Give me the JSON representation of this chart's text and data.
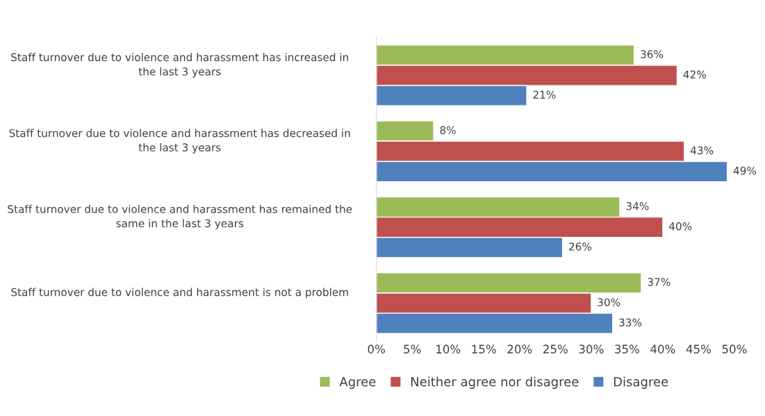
{
  "chart_data": {
    "type": "bar",
    "orientation": "horizontal",
    "categories": [
      "Staff turnover due to violence and harassment has increased in the last 3 years",
      "Staff turnover due to violence and harassment has decreased in the last 3 years",
      "Staff turnover due to violence and harassment has remained the same in the last 3 years",
      "Staff turnover due to violence and harassment is not a problem"
    ],
    "series": [
      {
        "name": "Agree",
        "color": "#9bbb59",
        "values": [
          36,
          8,
          34,
          37
        ],
        "value_labels": [
          "36%",
          "8%",
          "34%",
          "37%"
        ]
      },
      {
        "name": "Neither agree nor disagree",
        "color": "#c0504d",
        "values": [
          42,
          43,
          40,
          30
        ],
        "value_labels": [
          "42%",
          "43%",
          "40%",
          "30%"
        ]
      },
      {
        "name": "Disagree",
        "color": "#4f81bd",
        "values": [
          21,
          49,
          26,
          33
        ],
        "value_labels": [
          "21%",
          "49%",
          "26%",
          "33%"
        ]
      }
    ],
    "xlim": [
      0,
      50
    ],
    "xticks": [
      {
        "value": 0,
        "label": "0%"
      },
      {
        "value": 5,
        "label": "5%"
      },
      {
        "value": 10,
        "label": "10%"
      },
      {
        "value": 15,
        "label": "15%"
      },
      {
        "value": 20,
        "label": "20%"
      },
      {
        "value": 25,
        "label": "25%"
      },
      {
        "value": 30,
        "label": "30%"
      },
      {
        "value": 35,
        "label": "35%"
      },
      {
        "value": 40,
        "label": "40%"
      },
      {
        "value": 45,
        "label": "45%"
      },
      {
        "value": 50,
        "label": "50%"
      }
    ],
    "grid": false,
    "legend": "bottom"
  }
}
